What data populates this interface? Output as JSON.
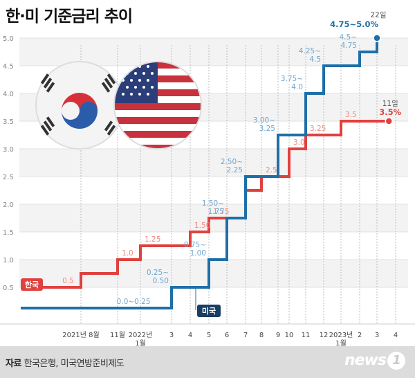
{
  "title": "한·미 기준금리 추이",
  "source": {
    "label": "자료",
    "text": "한국은행, 미국연방준비제도"
  },
  "logo": {
    "text": "news",
    "mark": "1"
  },
  "colors": {
    "korea": "#e0413e",
    "usa": "#1e6fa8",
    "korea_label": "#f08a7e",
    "usa_label": "#6fa5cf",
    "grid": "#bdbdbd",
    "band": "#f3f3f3"
  },
  "chart_data": {
    "type": "line",
    "step": true,
    "title": "한·미 기준금리 추이",
    "ylim": [
      0,
      5.0
    ],
    "y_ticks": [
      "0.5",
      "1.0",
      "1.5",
      "2.0",
      "2.5",
      "3.0",
      "3.5",
      "4.0",
      "4.5",
      "5.0"
    ],
    "x_ticks": [
      {
        "t": 2021.583,
        "label": "2021년 8월"
      },
      {
        "t": 2021.833,
        "label": "11월"
      },
      {
        "t": 2022.0,
        "label": "2022년",
        "sub": "1월"
      },
      {
        "t": 2022.167,
        "label": "3"
      },
      {
        "t": 2022.25,
        "label": "4"
      },
      {
        "t": 2022.333,
        "label": "5"
      },
      {
        "t": 2022.417,
        "label": "6"
      },
      {
        "t": 2022.5,
        "label": "7"
      },
      {
        "t": 2022.583,
        "label": "8"
      },
      {
        "t": 2022.667,
        "label": "9"
      },
      {
        "t": 2022.75,
        "label": "10"
      },
      {
        "t": 2022.833,
        "label": "11"
      },
      {
        "t": 2022.917,
        "label": "12"
      },
      {
        "t": 2023.0,
        "label": "2023년",
        "sub": "1월"
      },
      {
        "t": 2023.083,
        "label": "2"
      },
      {
        "t": 2023.167,
        "label": "3"
      },
      {
        "t": 2023.25,
        "label": "4"
      }
    ],
    "series": [
      {
        "name": "한국",
        "steps": [
          {
            "t": 2021.3,
            "value": 0.5,
            "label": "0.5"
          },
          {
            "t": 2021.583,
            "value": 0.75,
            "label": ""
          },
          {
            "t": 2021.833,
            "value": 1.0,
            "label": "1.0"
          },
          {
            "t": 2022.0,
            "value": 1.25,
            "label": "1.25"
          },
          {
            "t": 2022.25,
            "value": 1.5,
            "label": "1.50"
          },
          {
            "t": 2022.333,
            "value": 1.75,
            "label": "1.75"
          },
          {
            "t": 2022.5,
            "value": 2.25,
            "label": ""
          },
          {
            "t": 2022.583,
            "value": 2.5,
            "label": "2.5"
          },
          {
            "t": 2022.75,
            "value": 3.0,
            "label": "3.0"
          },
          {
            "t": 2022.833,
            "value": 3.25,
            "label": "3.25"
          },
          {
            "t": 2023.0,
            "value": 3.5,
            "label": "3.5"
          }
        ],
        "end_t": 2023.22,
        "end_date": "11일",
        "end_value": "3.5%"
      },
      {
        "name": "미국",
        "steps": [
          {
            "t": 2021.3,
            "value": 0.125,
            "label": "0.0~0.25"
          },
          {
            "t": 2022.167,
            "value": 0.5,
            "label": "0.25~\n0.50"
          },
          {
            "t": 2022.333,
            "value": 1.0,
            "label": "0.75~\n1.00"
          },
          {
            "t": 2022.417,
            "value": 1.75,
            "label": "1.50~\n1.75"
          },
          {
            "t": 2022.5,
            "value": 2.5,
            "label": "2.50~\n2.25"
          },
          {
            "t": 2022.667,
            "value": 3.25,
            "label": "3.00~\n3.25"
          },
          {
            "t": 2022.833,
            "value": 4.0,
            "label": "3.75~\n4.0"
          },
          {
            "t": 2022.917,
            "value": 4.5,
            "label": "4.25~\n4.5"
          },
          {
            "t": 2023.083,
            "value": 4.75,
            "label": "4.5~\n4.75"
          },
          {
            "t": 2023.167,
            "value": 5.0,
            "label": ""
          }
        ],
        "end_t": 2023.167,
        "end_date": "22일",
        "end_value": "4.75~5.0%"
      }
    ]
  }
}
